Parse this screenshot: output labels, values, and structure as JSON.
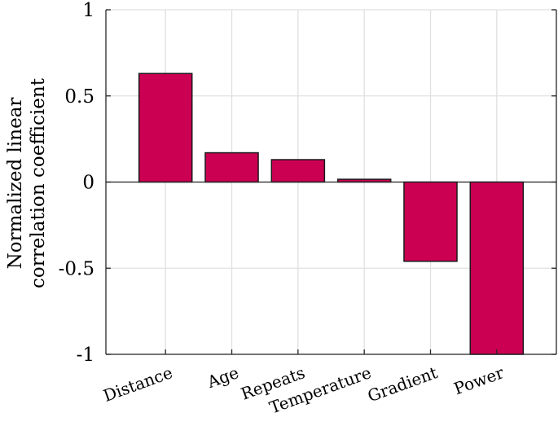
{
  "chart_data": {
    "type": "bar",
    "title": "",
    "xlabel": "",
    "ylabel": [
      "Normalized linear",
      "correlation coefficient"
    ],
    "categories": [
      "Distance",
      "Age",
      "Repeats",
      "Temperature",
      "Gradient",
      "Power"
    ],
    "values": [
      0.63,
      0.17,
      0.13,
      0.016,
      -0.46,
      -1.0
    ],
    "ylim": [
      -1,
      1
    ],
    "xlim": [
      0.1,
      6.9
    ],
    "yticks": [
      -1,
      -0.5,
      0,
      0.5,
      1
    ],
    "ytick_labels": [
      "-1",
      "-0.5",
      "0",
      "0.5",
      "1"
    ],
    "grid": true,
    "bar_color": "#cc0052",
    "edge_color": "#1a1a1a",
    "grid_color": "#e0e0e0"
  }
}
